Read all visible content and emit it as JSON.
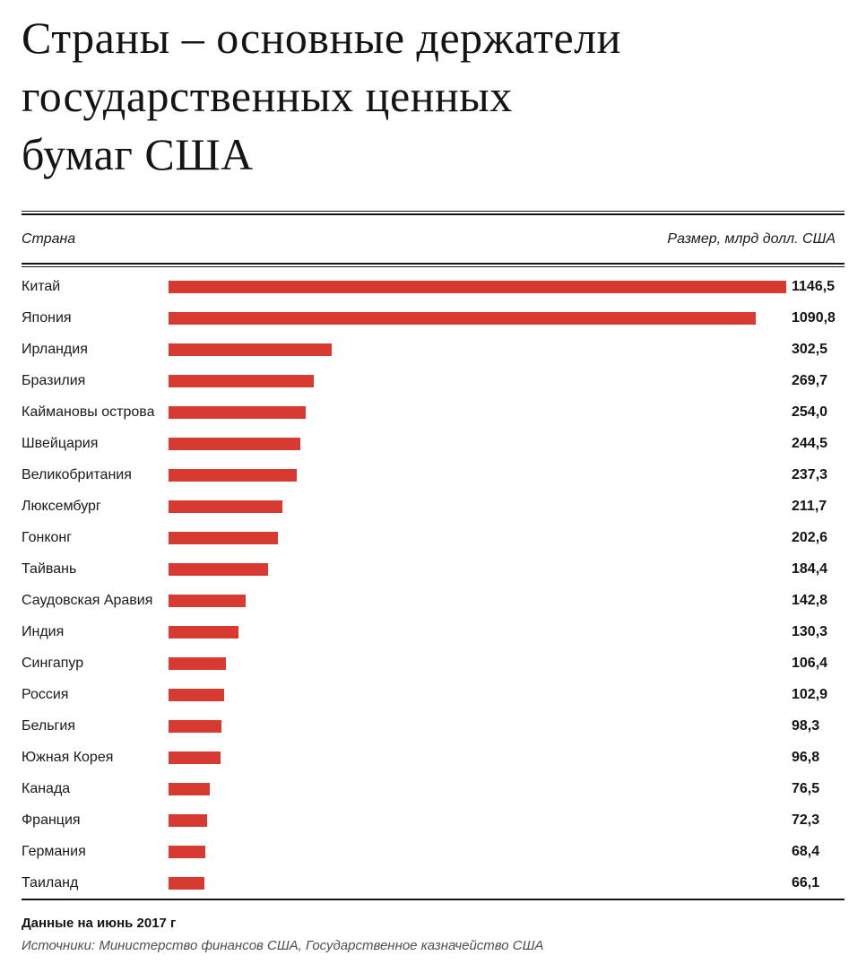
{
  "page": {
    "title": "Страны – основные держатели\nгосударственных ценных\nбумаг США"
  },
  "table_header": {
    "country": "Страна",
    "size": "Размер, млрд долл. США"
  },
  "footer": {
    "note": "Данные на июнь 2017 г",
    "sources": "Источники: Министерство финансов США, Государственное казначейство США"
  },
  "colors": {
    "bar": "#d73a30",
    "text": "#141414",
    "muted": "#4f4f4f"
  },
  "chart_data": {
    "type": "bar",
    "orientation": "horizontal",
    "title": "Страны – основные держатели государственных ценных бумаг США",
    "xlabel": "Размер, млрд долл. США",
    "ylabel": "Страна",
    "categories": [
      "Китай",
      "Япония",
      "Ирландия",
      "Бразилия",
      "Каймановы острова",
      "Швейцария",
      "Великобритания",
      "Люксембург",
      "Гонконг",
      "Тайвань",
      "Саудовская Аравия",
      "Индия",
      "Сингапур",
      "Россия",
      "Бельгия",
      "Южная Корея",
      "Канада",
      "Франция",
      "Германия",
      "Таиланд"
    ],
    "values": [
      1146.5,
      1090.8,
      302.5,
      269.7,
      254.0,
      244.5,
      237.3,
      211.7,
      202.6,
      184.4,
      142.8,
      130.3,
      106.4,
      102.9,
      98.3,
      96.8,
      76.5,
      72.3,
      68.4,
      66.1
    ],
    "value_labels": [
      "1146,5",
      "1090,8",
      "302,5",
      "269,7",
      "254,0",
      "244,5",
      "237,3",
      "211,7",
      "202,6",
      "184,4",
      "142,8",
      "130,3",
      "106,4",
      "102,9",
      "98,3",
      "96,8",
      "76,5",
      "72,3",
      "68,4",
      "66,1"
    ],
    "xlim": [
      0,
      1157
    ],
    "grid": false,
    "legend": false,
    "note": "Данные на июнь 2017 г",
    "sources": "Источники: Министерство финансов США, Государственное казначейство США"
  }
}
